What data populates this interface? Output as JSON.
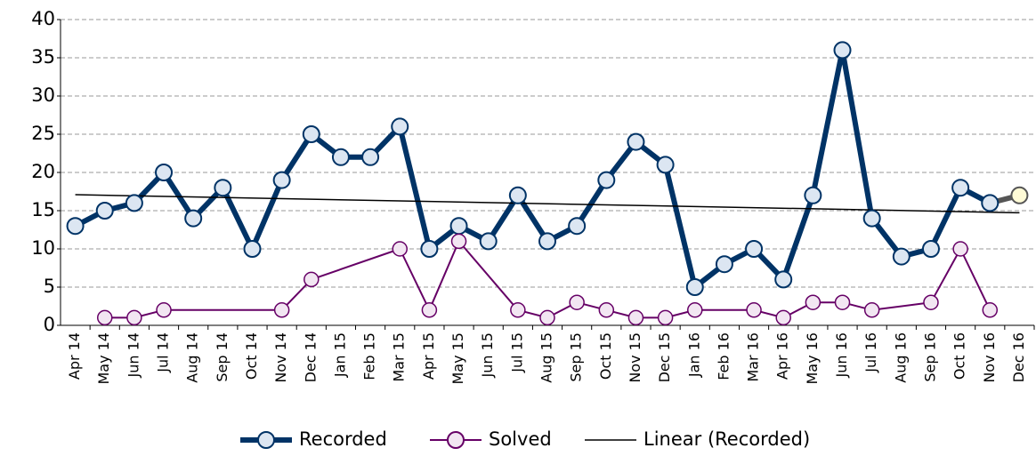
{
  "chart_data": {
    "type": "line",
    "categories": [
      "Apr 14",
      "May 14",
      "Jun 14",
      "Jul 14",
      "Aug 14",
      "Sep 14",
      "Oct 14",
      "Nov 14",
      "Dec 14",
      "Jan 15",
      "Feb 15",
      "Mar 15",
      "Apr 15",
      "May 15",
      "Jun 15",
      "Jul 15",
      "Aug 15",
      "Sep 15",
      "Oct 15",
      "Nov 15",
      "Dec 15",
      "Jan 16",
      "Feb 16",
      "Mar 16",
      "Apr 16",
      "May 16",
      "Jun 16",
      "Jul 16",
      "Aug 16",
      "Sep 16",
      "Oct 16",
      "Nov 16",
      "Dec 16"
    ],
    "series": [
      {
        "name": "Recorded",
        "color": "#003366",
        "marker_color": "#dce6f2",
        "last_point_color": "#fffbd6",
        "last_segment_color": "#555555",
        "values": [
          13,
          15,
          16,
          20,
          14,
          18,
          10,
          19,
          25,
          22,
          22,
          26,
          10,
          13,
          11,
          17,
          11,
          13,
          19,
          24,
          21,
          5,
          8,
          10,
          6,
          17,
          36,
          14,
          9,
          10,
          18,
          16,
          17
        ]
      },
      {
        "name": "Solved",
        "color": "#660066",
        "marker_color": "#f2e6f2",
        "values": [
          null,
          1,
          1,
          2,
          null,
          null,
          null,
          2,
          6,
          null,
          null,
          10,
          2,
          11,
          null,
          2,
          1,
          3,
          2,
          1,
          1,
          2,
          null,
          2,
          1,
          3,
          3,
          2,
          null,
          3,
          10,
          2,
          null
        ]
      }
    ],
    "trend_label": "Linear (Recorded)",
    "trend_color": "#000000",
    "span_gaps": true,
    "ylim": [
      0,
      40
    ],
    "yticks": [
      0,
      5,
      10,
      15,
      20,
      25,
      30,
      35,
      40
    ],
    "grid": true,
    "legend": "bottom"
  }
}
